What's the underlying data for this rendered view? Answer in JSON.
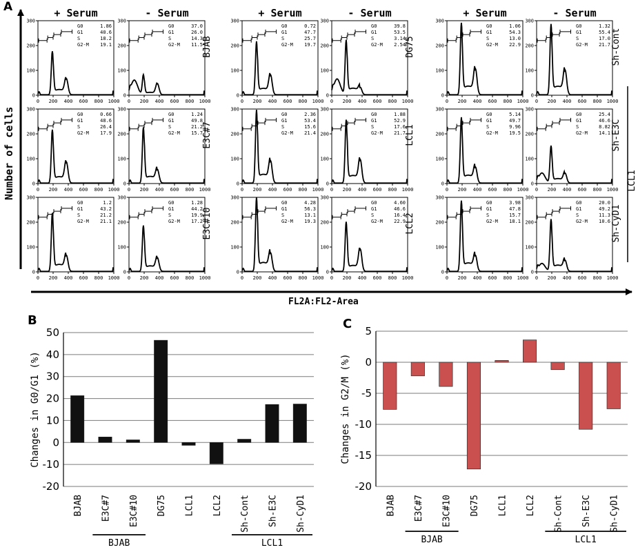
{
  "panel_letters": {
    "a": "A",
    "b": "B",
    "c": "C"
  },
  "panel_a": {
    "col_headers": [
      "+ Serum",
      "- Serum",
      "+ Serum",
      "- Serum",
      "+ Serum",
      "- Serum"
    ],
    "y_axis_label": "Number of cells",
    "x_axis_label": "FL2A:FL2-Area",
    "row_labels": [
      [
        "BJAB",
        "DG75",
        "Sh-Cont"
      ],
      [
        "E3C#7",
        "LCL1",
        "Sh-E3C"
      ],
      [
        "E3C#10",
        "LCL2",
        "Sh-CyD1"
      ]
    ],
    "group_label": "LCL1",
    "y_ticks": [
      "0",
      "100",
      "200",
      "300"
    ],
    "x_ticks": [
      "0",
      "200",
      "400",
      "600",
      "800",
      "1000"
    ],
    "phase_names": [
      "G0",
      "G1",
      "S",
      "G2-M"
    ],
    "histograms": [
      [
        {
          "stats": [
            "1.86",
            "40.6",
            "18.2",
            "19.1"
          ],
          "g1_peak": 175,
          "g2_peak": 65
        },
        {
          "stats": [
            "37.0",
            "26.0",
            "14.3",
            "11.5"
          ],
          "g1_peak": 80,
          "g2_peak": 45
        },
        {
          "stats": [
            "0.72",
            "47.7",
            "25.7",
            "19.7"
          ],
          "g1_peak": 215,
          "g2_peak": 80
        },
        {
          "stats": [
            "39.8",
            "53.5",
            "3.14",
            "2.54"
          ],
          "g1_peak": 220,
          "g2_peak": 30
        },
        {
          "stats": [
            "1.06",
            "54.3",
            "13.0",
            "22.9"
          ],
          "g1_peak": 290,
          "g2_peak": 105
        },
        {
          "stats": [
            "1.32",
            "55.4",
            "17.0",
            "21.7"
          ],
          "g1_peak": 285,
          "g2_peak": 100
        }
      ],
      [
        {
          "stats": [
            "0.66",
            "48.6",
            "26.4",
            "17.9"
          ],
          "g1_peak": 215,
          "g2_peak": 85
        },
        {
          "stats": [
            "1.24",
            "49.8",
            "21.2",
            "15.7"
          ],
          "g1_peak": 225,
          "g2_peak": 55
        },
        {
          "stats": [
            "2.36",
            "53.4",
            "15.6",
            "21.4"
          ],
          "g1_peak": 295,
          "g2_peak": 90
        },
        {
          "stats": [
            "1.88",
            "52.9",
            "17.6",
            "21.7"
          ],
          "g1_peak": 255,
          "g2_peak": 95
        },
        {
          "stats": [
            "5.14",
            "49.7",
            "9.96",
            "19.5"
          ],
          "g1_peak": 265,
          "g2_peak": 65
        },
        {
          "stats": [
            "25.4",
            "46.6",
            "8.82",
            "14.1"
          ],
          "g1_peak": 150,
          "g2_peak": 40
        }
      ],
      [
        {
          "stats": [
            "1.2",
            "43.2",
            "21.2",
            "21.1"
          ],
          "g1_peak": 235,
          "g2_peak": 65
        },
        {
          "stats": [
            "1.28",
            "44.2",
            "19.9",
            "17.2"
          ],
          "g1_peak": 185,
          "g2_peak": 55
        },
        {
          "stats": [
            "4.28",
            "56.3",
            "13.1",
            "19.3"
          ],
          "g1_peak": 300,
          "g2_peak": 75
        },
        {
          "stats": [
            "4.60",
            "46.6",
            "16.4",
            "22.9"
          ],
          "g1_peak": 200,
          "g2_peak": 90
        },
        {
          "stats": [
            "3.98",
            "47.8",
            "15.7",
            "18.1"
          ],
          "g1_peak": 285,
          "g2_peak": 65
        },
        {
          "stats": [
            "20.0",
            "49.2",
            "11.3",
            "10.6"
          ],
          "g1_peak": 210,
          "g2_peak": 45
        }
      ]
    ]
  },
  "chart_data": [
    {
      "type": "bar",
      "panel": "B",
      "ylabel": "Changes in G0/G1 (%)",
      "ylim": [
        -20,
        50
      ],
      "yticks": [
        -20,
        -10,
        0,
        10,
        20,
        30,
        40,
        50
      ],
      "categories": [
        "BJAB",
        "E3C#7",
        "E3C#10",
        "DG75",
        "LCL1",
        "LCL2",
        "Sh-Cont",
        "Sh-E3C",
        "Sh-CyD1"
      ],
      "values": [
        21.3,
        2.5,
        1.2,
        46.5,
        -1.3,
        -9.7,
        1.5,
        17.3,
        17.5
      ],
      "bar_color": "#111111",
      "grid": true,
      "group_labels": [
        {
          "label": "BJAB",
          "from": 1,
          "to": 2
        },
        {
          "label": "LCL1",
          "from": 6,
          "to": 8
        }
      ]
    },
    {
      "type": "bar",
      "panel": "C",
      "ylabel": "Changes in G2/M (%)",
      "ylim": [
        -20,
        5
      ],
      "yticks": [
        -20,
        -15,
        -10,
        -5,
        0,
        5
      ],
      "categories": [
        "BJAB",
        "E3C#7",
        "E3C#10",
        "DG75",
        "LCL1",
        "LCL2",
        "Sh-Cont",
        "Sh-E3C",
        "Sh-CyD1"
      ],
      "values": [
        -7.6,
        -2.2,
        -3.9,
        -17.2,
        0.3,
        3.6,
        -1.2,
        -10.8,
        -7.5
      ],
      "bar_color": "#c9504e",
      "grid": true,
      "group_labels": [
        {
          "label": "BJAB",
          "from": 1,
          "to": 2
        },
        {
          "label": "LCL1",
          "from": 6,
          "to": 8
        }
      ]
    }
  ]
}
